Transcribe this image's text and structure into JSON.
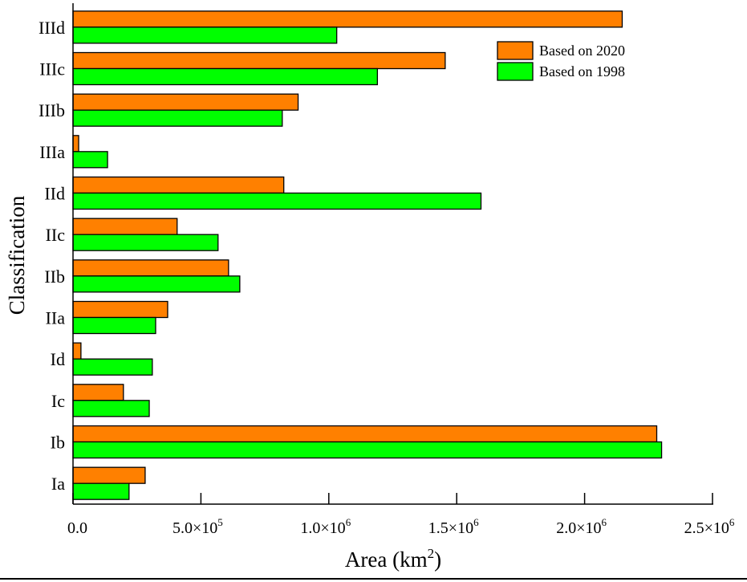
{
  "chart_data": {
    "type": "bar",
    "orientation": "horizontal",
    "title": "",
    "xlabel": "Area (km²)",
    "xlabel_base": "Area (km",
    "xlabel_sup": "2",
    "xlabel_end": ")",
    "ylabel": "Classification",
    "xlim": [
      0,
      2500000
    ],
    "xticks": [
      {
        "value": 0,
        "mant": "0.0",
        "exp": ""
      },
      {
        "value": 500000,
        "mant": "5.0×10",
        "exp": "5"
      },
      {
        "value": 1000000,
        "mant": "1.0×10",
        "exp": "6"
      },
      {
        "value": 1500000,
        "mant": "1.5×10",
        "exp": "6"
      },
      {
        "value": 2000000,
        "mant": "2.0×10",
        "exp": "6"
      },
      {
        "value": 2500000,
        "mant": "2.5×10",
        "exp": "6"
      }
    ],
    "categories": [
      "Ia",
      "Ib",
      "Ic",
      "Id",
      "IIa",
      "IIb",
      "IIc",
      "IId",
      "IIIa",
      "IIIb",
      "IIIc",
      "IIId"
    ],
    "series": [
      {
        "name": "Based on 2020",
        "color": "#ff8000",
        "values": [
          282000,
          2282000,
          197000,
          31000,
          370000,
          608000,
          407000,
          824000,
          22000,
          880000,
          1455000,
          2147000
        ]
      },
      {
        "name": "Based on 1998",
        "color": "#00ff00",
        "values": [
          219000,
          2301000,
          298000,
          310000,
          323000,
          652000,
          567000,
          1595000,
          135000,
          818000,
          1190000,
          1031000
        ]
      }
    ],
    "grid": false,
    "legend_position": "top-right"
  }
}
